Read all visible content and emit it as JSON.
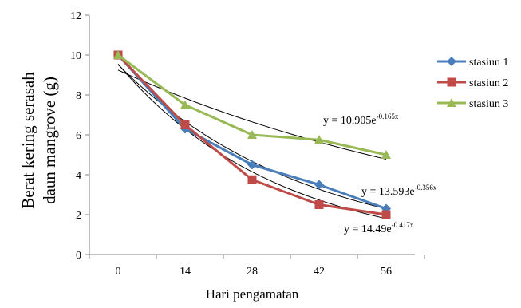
{
  "chart_data": {
    "type": "line",
    "title": "",
    "xlabel": "Hari pengamatan",
    "ylabel_lines": [
      "Berat kering serasah",
      "daun mangrove (g)"
    ],
    "categories": [
      "0",
      "14",
      "28",
      "42",
      "56"
    ],
    "x": [
      0,
      14,
      28,
      42,
      56
    ],
    "ylim": [
      0,
      12
    ],
    "yticks": [
      "0",
      "2",
      "4",
      "6",
      "8",
      "10",
      "12"
    ],
    "grid": false,
    "legend_position": "right",
    "series": [
      {
        "name": "stasiun 1",
        "values": [
          10.0,
          6.3,
          4.5,
          3.5,
          2.3
        ],
        "color": "#4a7ebb",
        "marker": "diamond"
      },
      {
        "name": "stasiun 2",
        "values": [
          10.0,
          6.5,
          3.75,
          2.5,
          2.0
        ],
        "color": "#be4b48",
        "marker": "square"
      },
      {
        "name": "stasiun 3",
        "values": [
          10.0,
          7.5,
          6.0,
          5.75,
          5.0
        ],
        "color": "#98b954",
        "marker": "triangle"
      }
    ],
    "trendlines": [
      {
        "type": "exponential",
        "a": 10.905,
        "b": -0.165,
        "label_base": "y = 10.905e",
        "label_exp": "-0.165x"
      },
      {
        "type": "exponential",
        "a": 13.593,
        "b": -0.356,
        "label_base": "y = 13.593e",
        "label_exp": "-0.356x"
      },
      {
        "type": "exponential",
        "a": 14.49,
        "b": -0.417,
        "label_base": "y = 14.49e",
        "label_exp": "-0.417x"
      }
    ]
  }
}
